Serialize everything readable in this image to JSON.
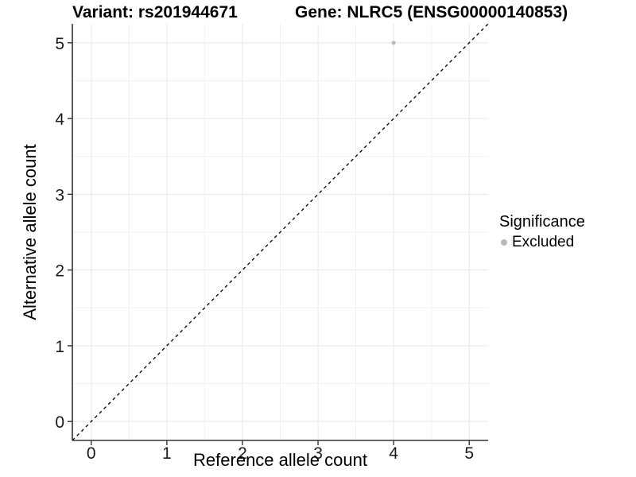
{
  "header": {
    "title_left": "Variant: rs201944671",
    "title_right": "Gene: NLRC5 (ENSG00000140853)"
  },
  "chart_data": {
    "type": "scatter",
    "title": "Variant: rs201944671   Gene: NLRC5 (ENSG00000140853)",
    "xlabel": "Reference allele count",
    "ylabel": "Alternative allele count",
    "xlim": [
      -0.25,
      5.25
    ],
    "ylim": [
      -0.25,
      5.25
    ],
    "xticks": [
      0,
      1,
      2,
      3,
      4,
      5
    ],
    "yticks": [
      0,
      1,
      2,
      3,
      4,
      5
    ],
    "minor_grid_step": 0.5,
    "grid": true,
    "points": [
      {
        "x": 4,
        "y": 5,
        "series": "Excluded"
      }
    ],
    "reference_line": {
      "type": "identity",
      "style": "dashed",
      "from": [
        -0.25,
        -0.25
      ],
      "to": [
        5.25,
        5.25
      ]
    },
    "legend": {
      "title": "Significance",
      "position": "right",
      "items": [
        {
          "label": "Excluded",
          "color": "#b9b9b9"
        }
      ]
    },
    "colors": {
      "point": "#bcbcbc",
      "grid_major": "#e7e7e7",
      "grid_minor": "#f1f1f1",
      "axis_line": "#333333",
      "tick_mark": "#333333",
      "tick_text": "#1a1a1a",
      "dashed_line": "#000000",
      "background": "#ffffff"
    }
  }
}
